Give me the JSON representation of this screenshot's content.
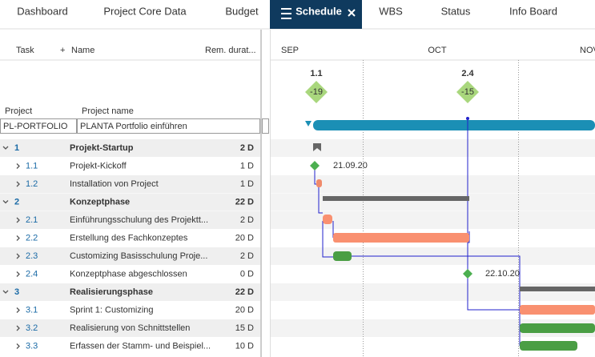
{
  "tabs": [
    "Dashboard",
    "Project Core Data",
    "Budget",
    "Schedule",
    "WBS",
    "Status",
    "Info Board"
  ],
  "active_tab": 3,
  "columns": {
    "task": "Task",
    "name": "Name",
    "remaining": "Rem. durat..."
  },
  "months": [
    "SEP",
    "OCT",
    "NOV"
  ],
  "milestones": [
    {
      "id": "1.1",
      "delta": "-19"
    },
    {
      "id": "2.4",
      "delta": "-15"
    }
  ],
  "project": {
    "label": "Project",
    "name_label": "Project name",
    "id": "PL-PORTFOLIO",
    "name": "PLANTA Portfolio einführen"
  },
  "rows": [
    {
      "id": "1",
      "name": "Projekt-Startup",
      "duration": "2 D",
      "summary": true
    },
    {
      "id": "1.1",
      "name": "Projekt-Kickoff",
      "duration": "1 D",
      "summary": false
    },
    {
      "id": "1.2",
      "name": "Installation von Project",
      "duration": "1 D",
      "summary": false
    },
    {
      "id": "2",
      "name": "Konzeptphase",
      "duration": "22 D",
      "summary": true
    },
    {
      "id": "2.1",
      "name": "Einführungsschulung des Projektt...",
      "duration": "2 D",
      "summary": false
    },
    {
      "id": "2.2",
      "name": "Erstellung des Fachkonzeptes",
      "duration": "20 D",
      "summary": false
    },
    {
      "id": "2.3",
      "name": "Customizing Basisschulung Proje...",
      "duration": "2 D",
      "summary": false
    },
    {
      "id": "2.4",
      "name": "Konzeptphase abgeschlossen",
      "duration": "0 D",
      "summary": false
    },
    {
      "id": "3",
      "name": "Realisierungsphase",
      "duration": "22 D",
      "summary": true
    },
    {
      "id": "3.1",
      "name": "Sprint 1: Customizing",
      "duration": "20 D",
      "summary": false
    },
    {
      "id": "3.2",
      "name": "Realisierung von Schnittstellen",
      "duration": "15 D",
      "summary": false
    },
    {
      "id": "3.3",
      "name": "Erfassen der Stamm- und Beispiel...",
      "duration": "10 D",
      "summary": false
    }
  ],
  "date_labels": [
    "21.09.20",
    "22.10.20"
  ]
}
